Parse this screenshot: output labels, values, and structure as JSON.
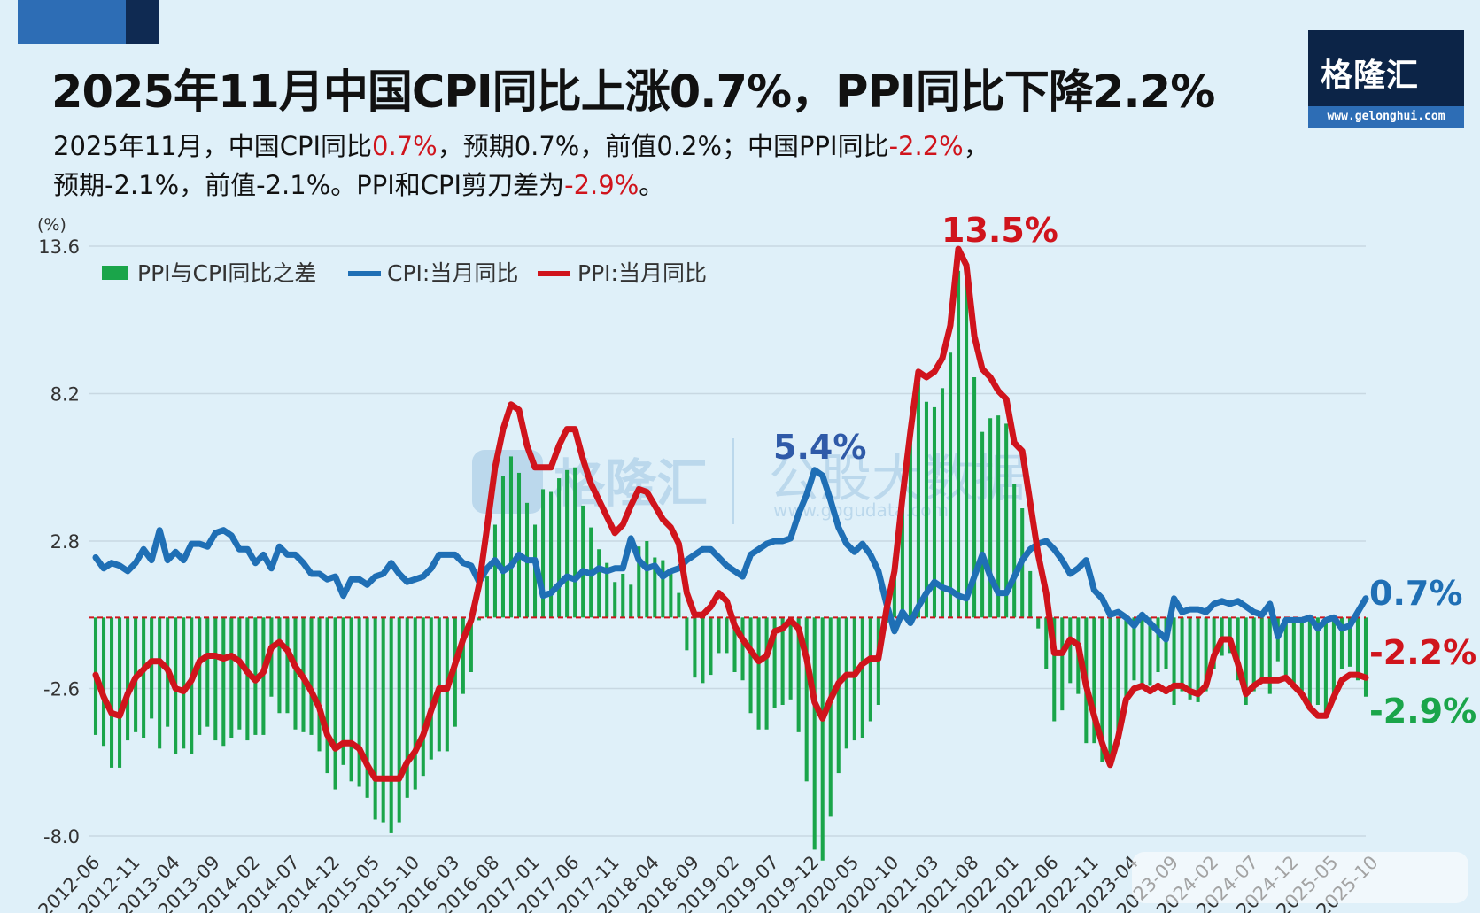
{
  "headline": "2025年11月中国CPI同比上涨0.7%，PPI同比下降2.2%",
  "summary": {
    "line1_a": "2025年11月，中国CPI同比",
    "line1_b": "0.7%",
    "line1_c": "，预期0.7%，前值0.2%；中国PPI同比",
    "line1_d": "-2.2%",
    "line1_e": "，",
    "line2_a": "预期-2.1%，前值-2.1%。PPI和CPI剪刀差为",
    "line2_b": "-2.9%",
    "line2_c": "。"
  },
  "logo": {
    "brand": "格隆汇",
    "url": "www.gelonghui.com"
  },
  "watermark": {
    "left": "格隆汇",
    "right": "公股大数据",
    "url": "www.gogudata.com"
  },
  "colors": {
    "bar": "#1aa54a",
    "cpi": "#1f6fb5",
    "ppi": "#d0141c",
    "title": "#111111",
    "background": "#dff0f9"
  },
  "chart_data": {
    "type": "line+bar",
    "unit": "(%)",
    "ylim": [
      -8.0,
      13.6
    ],
    "yticks": [
      "13.6",
      "8.2",
      "2.8",
      "-2.6",
      "-8.0"
    ],
    "xticks": [
      "2012-06",
      "2012-11",
      "2013-04",
      "2013-09",
      "2014-02",
      "2014-07",
      "2014-12",
      "2015-05",
      "2015-10",
      "2016-03",
      "2016-08",
      "2017-01",
      "2017-06",
      "2017-11",
      "2018-04",
      "2018-09",
      "2019-02",
      "2019-07",
      "2019-12",
      "2020-05",
      "2020-10",
      "2021-03",
      "2021-08",
      "2022-01",
      "2022-06",
      "2022-11",
      "2023-04",
      "2023-09",
      "2024-02",
      "2024-07",
      "2024-12",
      "2025-05",
      "2025-10"
    ],
    "legend": [
      "PPI与CPI同比之差",
      "CPI:当月同比",
      "PPI:当月同比"
    ],
    "annotations": {
      "ppi_peak": "13.5%",
      "cpi_peak": "5.4%",
      "cpi_last": "0.7%",
      "ppi_last": "-2.2%",
      "gap_last": "-2.9%"
    },
    "series": [
      {
        "name": "CPI:当月同比",
        "values": [
          2.2,
          1.8,
          2.0,
          1.9,
          1.7,
          2.0,
          2.5,
          2.1,
          3.2,
          2.1,
          2.4,
          2.1,
          2.7,
          2.7,
          2.6,
          3.1,
          3.2,
          3.0,
          2.5,
          2.5,
          2.0,
          2.3,
          1.8,
          2.6,
          2.3,
          2.3,
          2.0,
          1.6,
          1.6,
          1.4,
          1.5,
          0.8,
          1.4,
          1.4,
          1.2,
          1.5,
          1.6,
          2.0,
          1.6,
          1.3,
          1.4,
          1.5,
          1.8,
          2.3,
          2.3,
          2.3,
          2.0,
          1.9,
          1.3,
          1.8,
          2.1,
          1.7,
          1.9,
          2.3,
          2.1,
          2.1,
          0.8,
          0.9,
          1.2,
          1.5,
          1.4,
          1.7,
          1.6,
          1.8,
          1.7,
          1.8,
          1.8,
          2.9,
          2.1,
          1.8,
          1.9,
          1.5,
          1.7,
          1.8,
          2.1,
          2.3,
          2.5,
          2.5,
          2.2,
          1.9,
          1.7,
          1.5,
          2.3,
          2.5,
          2.7,
          2.8,
          2.8,
          2.9,
          3.8,
          4.5,
          5.4,
          5.2,
          4.3,
          3.3,
          2.7,
          2.4,
          2.7,
          2.3,
          1.7,
          0.5,
          -0.5,
          0.2,
          -0.2,
          0.4,
          0.9,
          1.3,
          1.1,
          1.0,
          0.8,
          0.7,
          1.5,
          2.3,
          1.5,
          0.9,
          0.9,
          1.5,
          2.1,
          2.5,
          2.7,
          2.8,
          2.5,
          2.1,
          1.6,
          1.8,
          2.1,
          1.0,
          0.7,
          0.1,
          0.2,
          0.0,
          -0.3,
          0.1,
          -0.2,
          -0.5,
          -0.8,
          0.7,
          0.2,
          0.3,
          0.3,
          0.2,
          0.5,
          0.6,
          0.5,
          0.6,
          0.4,
          0.2,
          0.1,
          0.5,
          -0.7,
          -0.1,
          -0.1,
          -0.1,
          0.0,
          -0.4,
          -0.1,
          0.0,
          -0.4,
          -0.3,
          0.2,
          0.7
        ]
      },
      {
        "name": "PPI:当月同比",
        "values": [
          -2.1,
          -2.9,
          -3.5,
          -3.6,
          -2.8,
          -2.2,
          -1.9,
          -1.6,
          -1.6,
          -1.9,
          -2.6,
          -2.7,
          -2.3,
          -1.6,
          -1.4,
          -1.4,
          -1.5,
          -1.4,
          -1.6,
          -2.0,
          -2.3,
          -2.0,
          -1.1,
          -0.9,
          -1.2,
          -1.8,
          -2.2,
          -2.7,
          -3.3,
          -4.3,
          -4.8,
          -4.6,
          -4.6,
          -4.8,
          -5.4,
          -5.9,
          -5.9,
          -5.9,
          -5.9,
          -5.3,
          -4.9,
          -4.3,
          -3.4,
          -2.6,
          -2.6,
          -1.7,
          -0.8,
          -0.1,
          1.2,
          3.3,
          5.5,
          6.9,
          7.8,
          7.6,
          6.3,
          5.5,
          5.5,
          5.5,
          6.3,
          6.9,
          6.9,
          5.8,
          4.9,
          4.3,
          3.7,
          3.1,
          3.4,
          4.1,
          4.7,
          4.6,
          4.1,
          3.6,
          3.3,
          2.7,
          0.9,
          0.1,
          0.1,
          0.4,
          0.9,
          0.6,
          -0.3,
          -0.8,
          -1.2,
          -1.6,
          -1.4,
          -0.5,
          -0.4,
          -0.1,
          -0.4,
          -1.5,
          -3.1,
          -3.7,
          -3.0,
          -2.4,
          -2.1,
          -2.1,
          -1.7,
          -1.5,
          -1.5,
          0.3,
          1.7,
          4.4,
          6.8,
          9.0,
          8.8,
          9.0,
          9.5,
          10.7,
          13.5,
          12.9,
          10.3,
          9.1,
          8.8,
          8.3,
          8.0,
          6.4,
          6.1,
          4.2,
          2.3,
          0.9,
          -1.3,
          -1.3,
          -0.8,
          -1.0,
          -2.5,
          -3.6,
          -4.6,
          -5.4,
          -4.4,
          -3.0,
          -2.6,
          -2.5,
          -2.7,
          -2.5,
          -2.7,
          -2.5,
          -2.5,
          -2.7,
          -2.8,
          -2.5,
          -1.4,
          -0.8,
          -0.8,
          -1.7,
          -2.8,
          -2.5,
          -2.3,
          -2.3,
          -2.3,
          -2.2,
          -2.5,
          -2.8,
          -3.3,
          -3.6,
          -3.6,
          -2.9,
          -2.3,
          -2.1,
          -2.1,
          -2.2
        ]
      }
    ],
    "derived_series": {
      "name": "PPI与CPI同比之差",
      "definition": "PPI minus CPI for each month"
    }
  }
}
